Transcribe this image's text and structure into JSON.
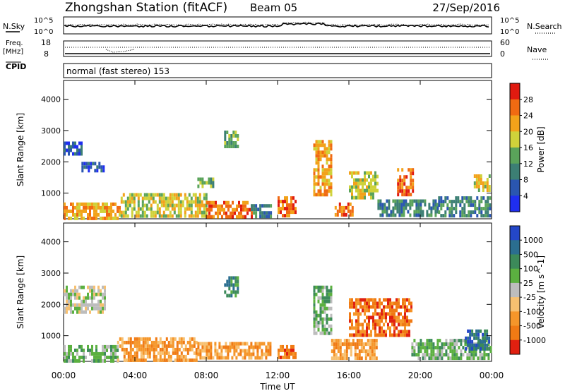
{
  "header": {
    "station": "Zhongshan Station (fitACF)",
    "beam": "Beam 05",
    "date": "27/Sep/2016"
  },
  "status_panels": {
    "nsky_label": "N.Sky",
    "nsky_ticks": [
      "10^5",
      "10^0"
    ],
    "nsearch_label": "N.Search",
    "nsearch_ticks": [
      "10^5",
      "10^0"
    ],
    "freq_label": "Freq.",
    "freq_unit": "[MHz]",
    "freq_ticks": [
      "18",
      "8"
    ],
    "nave_label": "Nave",
    "nave_ticks": [
      "60",
      "0"
    ],
    "cpid_label": "CPID",
    "cpid_text": "normal (fast stereo) 153"
  },
  "chart_data": [
    {
      "type": "heatmap",
      "name": "power",
      "xlabel": "Time UT",
      "ylabel": "Slant Range [km]",
      "xlim": [
        0,
        24
      ],
      "ylim": [
        180,
        4600
      ],
      "x_ticks": [
        "00:00",
        "04:00",
        "08:00",
        "12:00",
        "16:00",
        "20:00",
        "00:00"
      ],
      "y_ticks": [
        1000,
        2000,
        3000,
        4000
      ],
      "colorbar": {
        "label": "Power [dB]",
        "ticks": [
          "4",
          "8",
          "12",
          "16",
          "20",
          "24",
          "28"
        ],
        "range": [
          0,
          32
        ],
        "colors": [
          "#1f2ef0",
          "#2a56b0",
          "#3c7f74",
          "#5aa35a",
          "#cfd23a",
          "#f2a21a",
          "#f06a12",
          "#e01a10"
        ]
      },
      "regions": [
        {
          "t0": 0.0,
          "t1": 3.2,
          "r0": 240,
          "r1": 700,
          "level": 20
        },
        {
          "t0": 3.2,
          "t1": 8.0,
          "r0": 240,
          "r1": 1000,
          "level": 18
        },
        {
          "t0": 8.0,
          "t1": 10.5,
          "r0": 240,
          "r1": 750,
          "level": 24
        },
        {
          "t0": 10.5,
          "t1": 11.6,
          "r0": 250,
          "r1": 650,
          "level": 10
        },
        {
          "t0": 0.0,
          "t1": 1.0,
          "r0": 2200,
          "r1": 2650,
          "level": 6
        },
        {
          "t0": 1.0,
          "t1": 2.2,
          "r0": 1700,
          "r1": 2000,
          "level": 6
        },
        {
          "t0": 7.5,
          "t1": 8.5,
          "r0": 1200,
          "r1": 1500,
          "level": 12
        },
        {
          "t0": 9.0,
          "t1": 9.8,
          "r0": 2500,
          "r1": 3000,
          "level": 14
        },
        {
          "t0": 12.0,
          "t1": 13.0,
          "r0": 250,
          "r1": 900,
          "level": 26
        },
        {
          "t0": 14.0,
          "t1": 15.0,
          "r0": 1000,
          "r1": 2700,
          "level": 22
        },
        {
          "t0": 15.2,
          "t1": 16.2,
          "r0": 250,
          "r1": 700,
          "level": 24
        },
        {
          "t0": 16.0,
          "t1": 17.6,
          "r0": 900,
          "r1": 1700,
          "level": 18
        },
        {
          "t0": 18.7,
          "t1": 19.6,
          "r0": 1000,
          "r1": 1800,
          "level": 26
        },
        {
          "t0": 17.6,
          "t1": 21.0,
          "r0": 250,
          "r1": 800,
          "level": 10
        },
        {
          "t0": 21.0,
          "t1": 23.9,
          "r0": 250,
          "r1": 900,
          "level": 10
        },
        {
          "t0": 23.0,
          "t1": 23.9,
          "r0": 1100,
          "r1": 1600,
          "level": 18
        }
      ]
    },
    {
      "type": "heatmap",
      "name": "velocity",
      "xlabel": "Time UT",
      "ylabel": "Slant Range [km]",
      "xlim": [
        0,
        24
      ],
      "ylim": [
        180,
        4600
      ],
      "x_ticks": [
        "00:00",
        "04:00",
        "08:00",
        "12:00",
        "16:00",
        "20:00",
        "00:00"
      ],
      "y_ticks": [
        1000,
        2000,
        3000,
        4000
      ],
      "colorbar": {
        "label": "Velocity [m s^-1]",
        "ticks": [
          "1000",
          "500",
          "100",
          "25",
          "-25",
          "-100",
          "-500",
          "-1000"
        ],
        "colors": [
          "#2447c8",
          "#2b6e90",
          "#3c8a5a",
          "#5bb040",
          "#bdbdbd",
          "#f7c070",
          "#f5962a",
          "#f07a14",
          "#e02010"
        ]
      },
      "regions": [
        {
          "t0": 0.0,
          "t1": 3.0,
          "r0": 240,
          "r1": 700,
          "level": 3
        },
        {
          "t0": 3.0,
          "t1": 7.5,
          "r0": 240,
          "r1": 950,
          "level": 6
        },
        {
          "t0": 7.5,
          "t1": 11.6,
          "r0": 240,
          "r1": 800,
          "level": 6
        },
        {
          "t0": 0.0,
          "t1": 2.3,
          "r0": 1800,
          "r1": 2600,
          "level": 4
        },
        {
          "t0": 9.0,
          "t1": 9.8,
          "r0": 2300,
          "r1": 2900,
          "level": 2
        },
        {
          "t0": 12.0,
          "t1": 13.0,
          "r0": 250,
          "r1": 700,
          "level": 7
        },
        {
          "t0": 14.0,
          "t1": 15.0,
          "r0": 1100,
          "r1": 2600,
          "level": 3
        },
        {
          "t0": 15.0,
          "t1": 17.5,
          "r0": 250,
          "r1": 900,
          "level": 6
        },
        {
          "t0": 16.0,
          "t1": 19.5,
          "r0": 1000,
          "r1": 2200,
          "level": 7
        },
        {
          "t0": 19.5,
          "t1": 23.9,
          "r0": 250,
          "r1": 900,
          "level": 3
        },
        {
          "t0": 22.5,
          "t1": 23.9,
          "r0": 600,
          "r1": 1200,
          "level": 1
        }
      ]
    }
  ]
}
